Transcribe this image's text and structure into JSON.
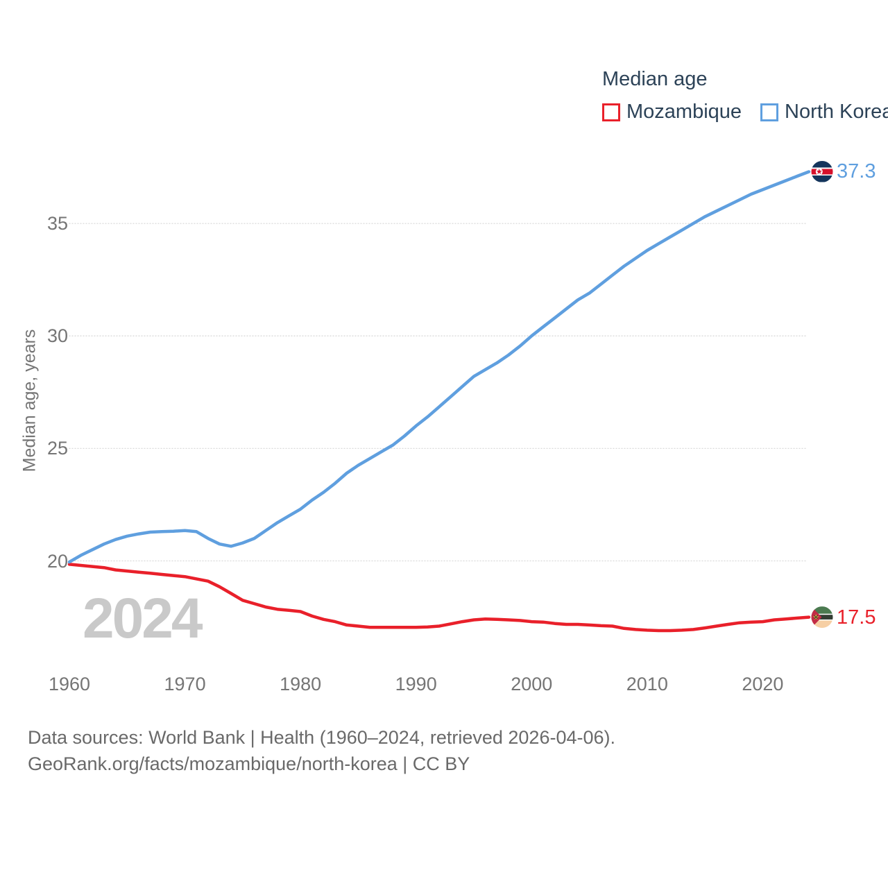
{
  "legend": {
    "title": "Median age",
    "items": [
      {
        "label": "Mozambique",
        "color": "#e9202a"
      },
      {
        "label": "North Korea",
        "color": "#5f9fdf"
      }
    ]
  },
  "y_axis": {
    "title": "Median age, years",
    "ticks": [
      20,
      25,
      30,
      35
    ]
  },
  "x_axis": {
    "ticks": [
      1960,
      1970,
      1980,
      1990,
      2000,
      2010,
      2020
    ]
  },
  "end_labels": [
    {
      "series": "North Korea",
      "value": "37.3",
      "color": "#5f9fdf",
      "flag": "north-korea"
    },
    {
      "series": "Mozambique",
      "value": "17.5",
      "color": "#e9202a",
      "flag": "mozambique"
    }
  ],
  "watermark": "2024",
  "footer": {
    "line1": "Data sources: World Bank | Health (1960–2024, retrieved 2026-04-06).",
    "line2": "GeoRank.org/facts/mozambique/north-korea | CC BY"
  },
  "chart_data": {
    "type": "line",
    "title": "Median age",
    "xlabel": "",
    "ylabel": "Median age, years",
    "x_range": [
      1960,
      2024
    ],
    "ylim": [
      16.5,
      38
    ],
    "y_ticks": [
      20,
      25,
      30,
      35
    ],
    "grid": "horizontal-dotted",
    "legend_position": "top-right",
    "years": [
      1960,
      1961,
      1962,
      1963,
      1964,
      1965,
      1966,
      1967,
      1968,
      1969,
      1970,
      1971,
      1972,
      1973,
      1974,
      1975,
      1976,
      1977,
      1978,
      1979,
      1980,
      1981,
      1982,
      1983,
      1984,
      1985,
      1986,
      1987,
      1988,
      1989,
      1990,
      1991,
      1992,
      1993,
      1994,
      1995,
      1996,
      1997,
      1998,
      1999,
      2000,
      2001,
      2002,
      2003,
      2004,
      2005,
      2006,
      2007,
      2008,
      2009,
      2010,
      2011,
      2012,
      2013,
      2014,
      2015,
      2016,
      2017,
      2018,
      2019,
      2020,
      2021,
      2022,
      2023,
      2024
    ],
    "series": [
      {
        "name": "Mozambique",
        "color": "#e9202a",
        "end_value": 17.5,
        "values": [
          19.85,
          19.8,
          19.75,
          19.7,
          19.6,
          19.55,
          19.5,
          19.45,
          19.4,
          19.35,
          19.3,
          19.2,
          19.1,
          18.85,
          18.55,
          18.25,
          18.1,
          17.95,
          17.85,
          17.8,
          17.75,
          17.55,
          17.4,
          17.3,
          17.15,
          17.1,
          17.05,
          17.05,
          17.05,
          17.05,
          17.05,
          17.06,
          17.1,
          17.2,
          17.3,
          17.38,
          17.42,
          17.4,
          17.38,
          17.35,
          17.3,
          17.28,
          17.22,
          17.18,
          17.18,
          17.15,
          17.12,
          17.1,
          17.0,
          16.95,
          16.92,
          16.9,
          16.9,
          16.92,
          16.95,
          17.02,
          17.1,
          17.18,
          17.25,
          17.28,
          17.3,
          17.38,
          17.42,
          17.46,
          17.5
        ]
      },
      {
        "name": "North Korea",
        "color": "#5f9fdf",
        "end_value": 37.3,
        "values": [
          19.95,
          20.25,
          20.5,
          20.75,
          20.95,
          21.1,
          21.2,
          21.28,
          21.3,
          21.32,
          21.35,
          21.3,
          21.0,
          20.75,
          20.65,
          20.8,
          21.0,
          21.35,
          21.7,
          22.0,
          22.3,
          22.7,
          23.05,
          23.45,
          23.9,
          24.25,
          24.55,
          24.85,
          25.15,
          25.55,
          26.0,
          26.4,
          26.85,
          27.3,
          27.75,
          28.2,
          28.5,
          28.8,
          29.15,
          29.55,
          30.0,
          30.4,
          30.8,
          31.2,
          31.6,
          31.9,
          32.3,
          32.7,
          33.1,
          33.45,
          33.8,
          34.1,
          34.4,
          34.7,
          35.0,
          35.3,
          35.55,
          35.8,
          36.05,
          36.3,
          36.5,
          36.7,
          36.9,
          37.1,
          37.3
        ]
      }
    ]
  }
}
